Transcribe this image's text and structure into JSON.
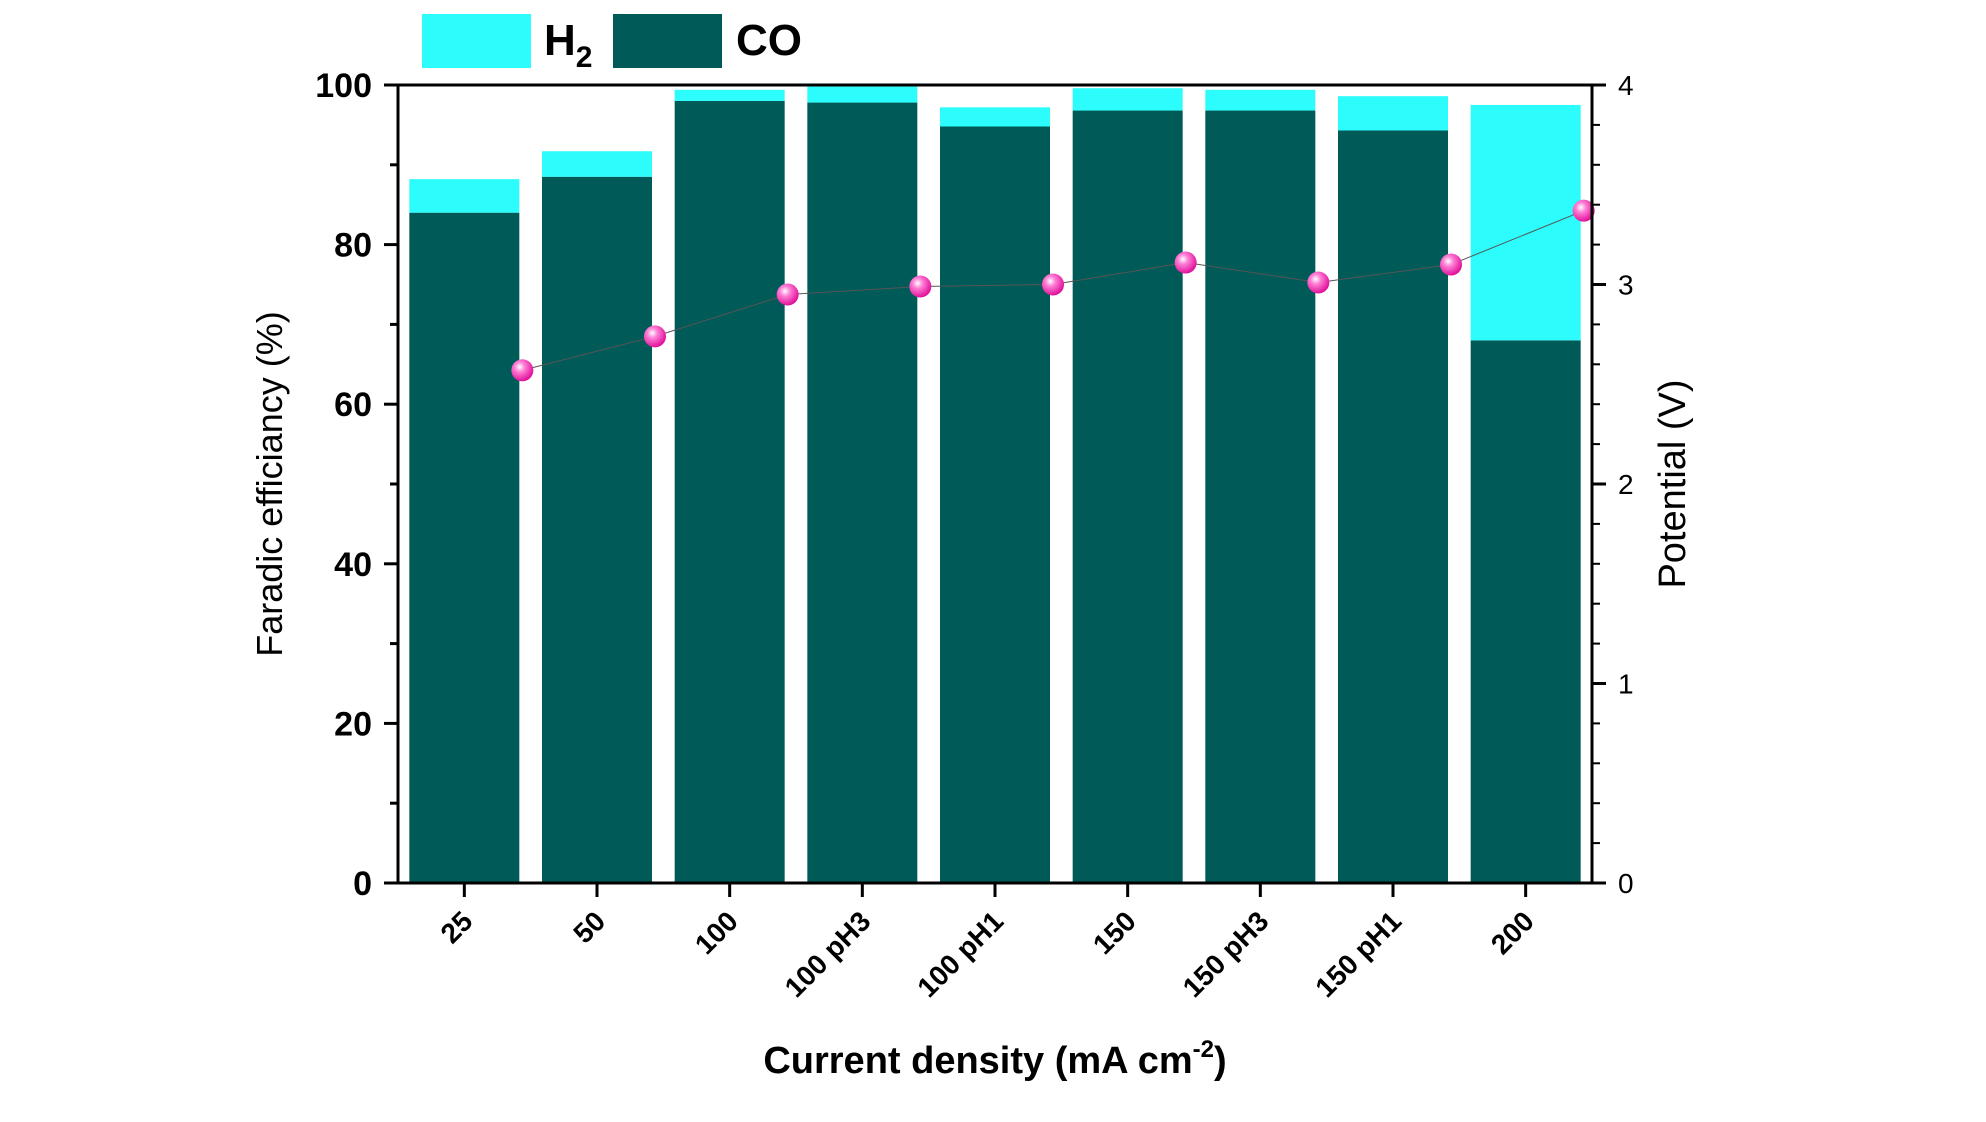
{
  "chart_data": {
    "type": "bar",
    "stacked": true,
    "categories": [
      "25",
      "50",
      "100",
      "100 pH3",
      "100 pH1",
      "150",
      "150 pH3",
      "150 pH1",
      "200"
    ],
    "series": [
      {
        "name": "CO",
        "axis": "left",
        "color": "#005a58",
        "values": [
          84.0,
          88.5,
          98.0,
          97.8,
          94.8,
          96.8,
          96.8,
          94.3,
          68.0
        ]
      },
      {
        "name": "H2",
        "axis": "left",
        "color": "#2cfcfc",
        "values": [
          4.2,
          3.2,
          1.4,
          2.0,
          2.4,
          2.8,
          2.6,
          4.3,
          29.5
        ]
      }
    ],
    "overlay_series": {
      "name": "Potential",
      "type": "scatter-line",
      "axis": "right",
      "color": "#ff3db8",
      "values": [
        2.57,
        2.74,
        2.95,
        2.99,
        3.0,
        3.11,
        3.01,
        3.1,
        3.37
      ]
    },
    "legend": {
      "position": "top-left",
      "items": [
        {
          "label": "H",
          "sub": "2",
          "color": "#2cfcfc"
        },
        {
          "label": "CO",
          "sub": "",
          "color": "#005a58"
        }
      ]
    },
    "xlabel": "Current density (mA cm",
    "xlabel_sup": "-2",
    "xlabel_tail": ")",
    "ylabel": "Faradic efficiancy (%)",
    "y2label": "Potential (V)",
    "ylim": [
      0,
      100
    ],
    "y2lim": [
      0,
      4
    ],
    "yticks": [
      "0",
      "20",
      "40",
      "60",
      "80",
      "100"
    ],
    "y2ticks": [
      "0",
      "1",
      "2",
      "3",
      "4"
    ],
    "grid": false
  }
}
